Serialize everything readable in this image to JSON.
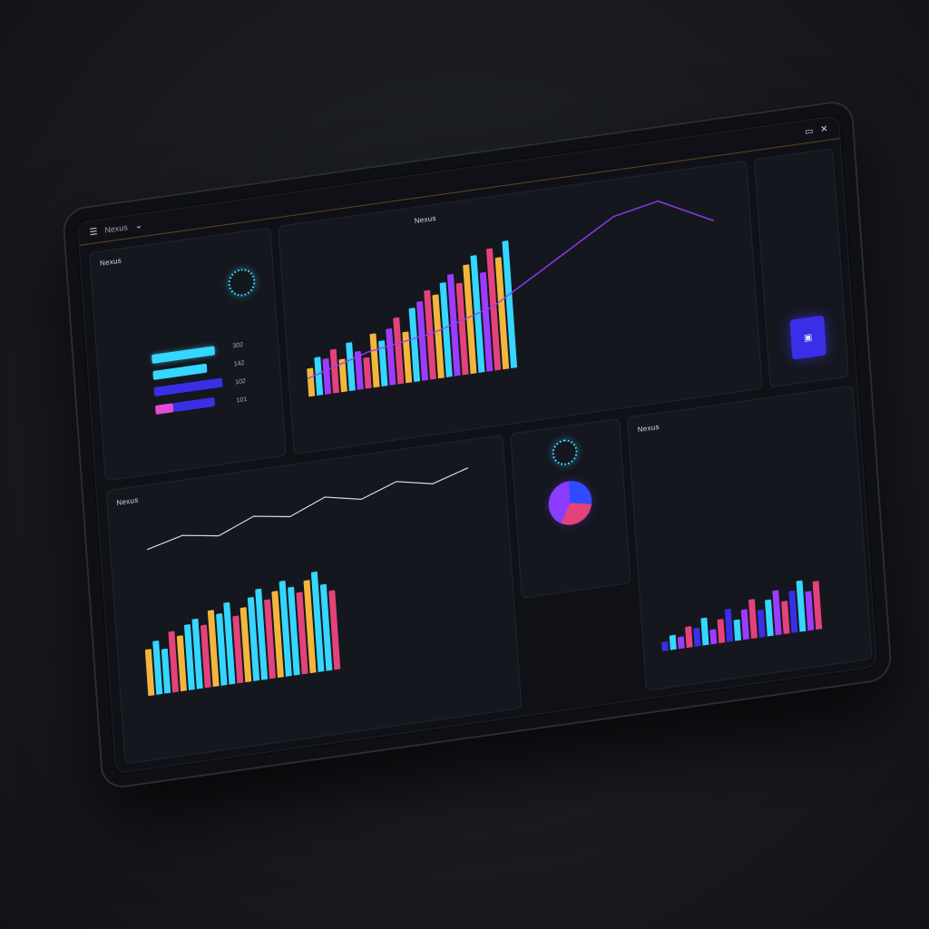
{
  "topbar": {
    "title": "Nexus",
    "icons": [
      "menu-icon",
      "minimize-icon",
      "close-icon"
    ]
  },
  "colors": {
    "bg": "#101117",
    "panel": "#15171f",
    "cyan": "#35d6ff",
    "purple": "#9b3cff",
    "yellow": "#f2b63c",
    "pink": "#e3427a",
    "blue": "#2e4bff",
    "accent_button": "#3a2ee6"
  },
  "left_panel": {
    "title": "Nexus",
    "rows": [
      "302",
      "142",
      "102",
      "101"
    ]
  },
  "main_chart": {
    "title": "Nexus",
    "chart_data": {
      "type": "bar",
      "series": [
        {
          "values": [
            22,
            30,
            28,
            34,
            26,
            38,
            30,
            24,
            42,
            36,
            44,
            52,
            40,
            58,
            62,
            70,
            66,
            74,
            80,
            72,
            86,
            92,
            78,
            96,
            88,
            100
          ]
        }
      ]
    }
  },
  "sidebar": {
    "items": [
      "",
      "",
      "",
      "",
      ""
    ],
    "button_label": ""
  },
  "lower_left": {
    "title": "Nexus",
    "chart_data": {
      "type": "bar",
      "values": [
        40,
        46,
        38,
        52,
        48,
        56,
        60,
        54,
        66,
        62,
        70,
        58,
        64,
        72,
        78,
        68,
        74,
        82,
        76,
        70,
        80,
        86,
        74,
        68
      ]
    }
  },
  "pie_panel": {
    "chart_data": {
      "type": "pie",
      "slices": [
        28,
        30,
        42
      ]
    }
  },
  "right_panel": {
    "title": "Nexus",
    "chart_data": {
      "type": "bar",
      "values": [
        6,
        10,
        8,
        14,
        12,
        18,
        10,
        16,
        22,
        14,
        20,
        26,
        18,
        24,
        30,
        22,
        28,
        34,
        26,
        32
      ]
    }
  }
}
